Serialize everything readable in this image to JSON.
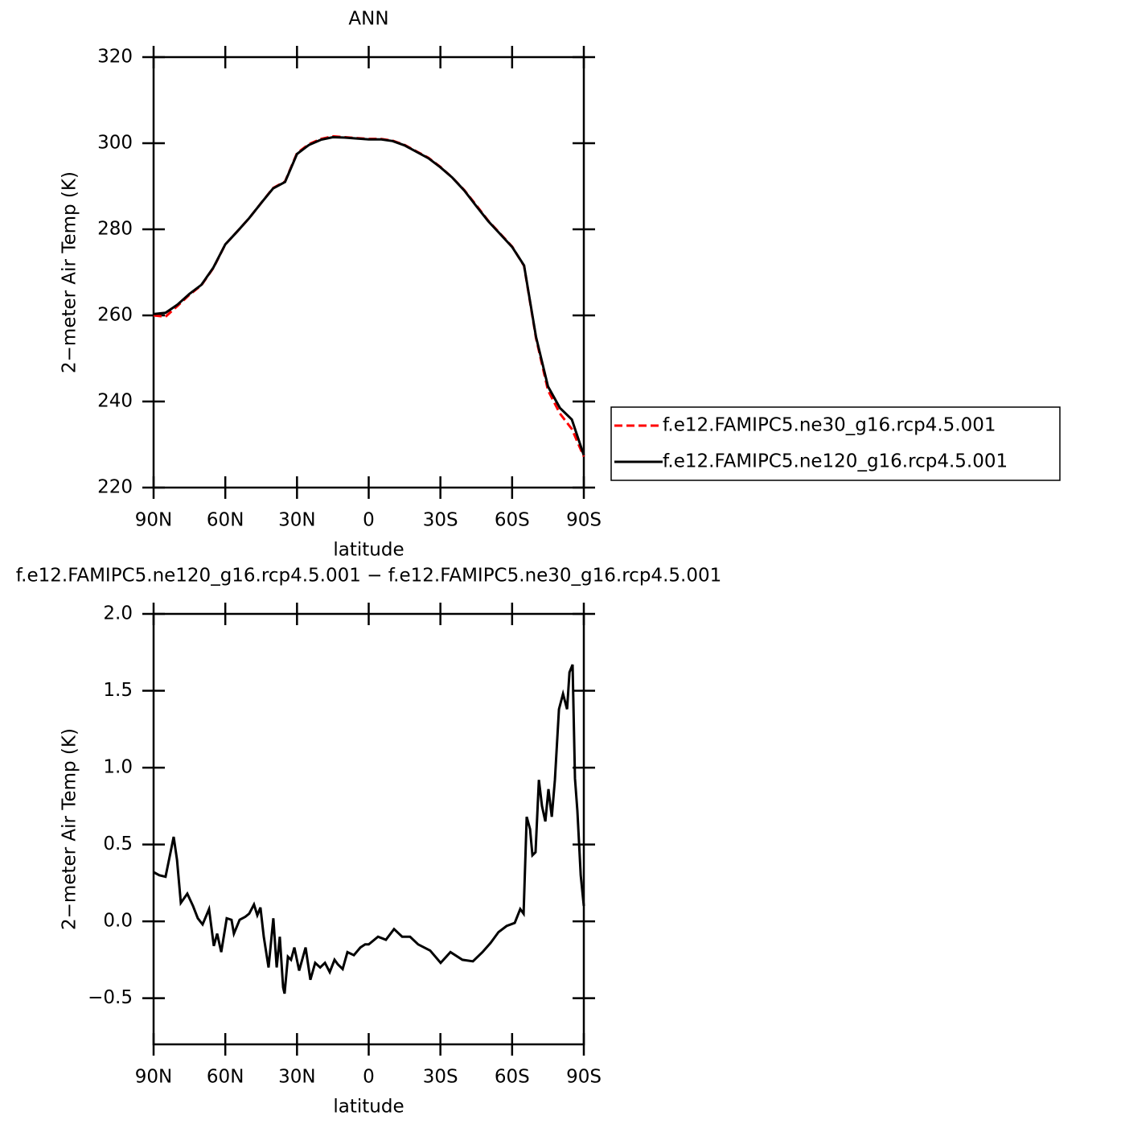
{
  "chart_data": [
    {
      "type": "line",
      "title": "ANN",
      "xlabel": "latitude",
      "ylabel": "2−meter Air Temp (K)",
      "xlim": [
        90,
        -90
      ],
      "xticks": [
        {
          "value": 90,
          "label": "90N"
        },
        {
          "value": 60,
          "label": "60N"
        },
        {
          "value": 30,
          "label": "30N"
        },
        0,
        {
          "value": -30,
          "label": "30S"
        },
        {
          "value": -60,
          "label": "60S"
        },
        {
          "value": -90,
          "label": "90S"
        }
      ],
      "ylim": [
        220,
        320
      ],
      "yticks": [
        220,
        240,
        260,
        280,
        300,
        320
      ],
      "legend": "outside-right",
      "x": [
        90,
        85,
        80,
        75,
        70,
        65,
        60,
        55,
        50,
        45,
        40,
        35,
        30,
        25,
        20,
        15,
        10,
        5,
        0,
        -5,
        -10,
        -15,
        -20,
        -25,
        -30,
        -35,
        -40,
        -45,
        -50,
        -55,
        -60,
        -65,
        -70,
        -75,
        -80,
        -85,
        -90
      ],
      "series": [
        {
          "name": "f.e12.FAMIPC5.ne30_g16.rcp4.5.001",
          "color": "#ff0000",
          "line_style": "dashed",
          "values": [
            260,
            259.7,
            262.2,
            264.8,
            267,
            271,
            276.5,
            279.5,
            282.6,
            286.1,
            289.6,
            291.1,
            297.7,
            299.8,
            301,
            301.6,
            301.4,
            301.2,
            301,
            301,
            300.6,
            299.6,
            298.1,
            296.6,
            294.5,
            292,
            289.1,
            285.6,
            282,
            279,
            276,
            271.5,
            254.7,
            242.6,
            237.2,
            233.6,
            227.2
          ]
        },
        {
          "name": "f.e12.FAMIPC5.ne120_g16.rcp4.5.001",
          "color": "#000000",
          "line_style": "solid",
          "values": [
            260.3,
            260.6,
            262.5,
            265,
            267.1,
            271.1,
            276.5,
            279.5,
            282.6,
            286.1,
            289.5,
            291,
            297.5,
            299.6,
            300.8,
            301.4,
            301.3,
            301.1,
            300.9,
            300.9,
            300.5,
            299.5,
            298,
            296.5,
            294.4,
            292,
            289,
            285.4,
            281.9,
            278.9,
            275.9,
            271.6,
            255,
            243.5,
            238.5,
            235.8,
            227.5
          ]
        }
      ]
    },
    {
      "type": "line",
      "title": "f.e12.FAMIPC5.ne120_g16.rcp4.5.001 − f.e12.FAMIPC5.ne30_g16.rcp4.5.001",
      "xlabel": "latitude",
      "ylabel": "2−meter Air Temp (K)",
      "xlim": [
        90,
        -90
      ],
      "xticks": [
        {
          "value": 90,
          "label": "90N"
        },
        {
          "value": 60,
          "label": "60N"
        },
        {
          "value": 30,
          "label": "30N"
        },
        0,
        {
          "value": -30,
          "label": "30S"
        },
        {
          "value": -60,
          "label": "60S"
        },
        {
          "value": -90,
          "label": "90S"
        }
      ],
      "ylim": [
        -0.8,
        2.0
      ],
      "yticks": [
        {
          "value": -0.5,
          "label": "−0.5"
        },
        {
          "value": 0,
          "label": "0.0"
        },
        0.5,
        {
          "value": 1,
          "label": "1.0"
        },
        1.5,
        {
          "value": 2,
          "label": "2.0"
        }
      ],
      "color": "#000000",
      "x": [
        90,
        87.6,
        85,
        82.9,
        81.6,
        80.2,
        78.6,
        75.9,
        73.5,
        71.5,
        69.5,
        66.8,
        64.8,
        63.4,
        61.7,
        59.4,
        57.4,
        56.4,
        54,
        51.6,
        50,
        48,
        46.6,
        45.3,
        43.9,
        41.9,
        39.9,
        38.5,
        37.2,
        35.8,
        35.2,
        33.8,
        32.5,
        31.1,
        29.1,
        26.4,
        24.4,
        22.4,
        20.3,
        18.3,
        16.3,
        14.3,
        12.9,
        10.9,
        8.9,
        6.2,
        3.5,
        1.5,
        0,
        -3.9,
        -7.2,
        -10.6,
        -14,
        -17.3,
        -20.7,
        -25.7,
        -30.1,
        -34.2,
        -39.2,
        -43.6,
        -47.6,
        -51,
        -54.3,
        -57.7,
        -61.1,
        -63.4,
        -64.8,
        -66.1,
        -67.5,
        -68.5,
        -69.8,
        -71.2,
        -72.5,
        -73.9,
        -75.2,
        -76.6,
        -77.9,
        -79.6,
        -81.3,
        -83,
        -84,
        -85.3,
        -86.3,
        -87.3,
        -88.7,
        -90
      ],
      "values": [
        0.32,
        0.3,
        0.29,
        0.45,
        0.55,
        0.4,
        0.12,
        0.18,
        0.1,
        0.02,
        -0.02,
        0.08,
        -0.16,
        -0.08,
        -0.2,
        0.02,
        0.01,
        -0.08,
        0.01,
        0.03,
        0.05,
        0.11,
        0.04,
        0.09,
        -0.1,
        -0.3,
        0.02,
        -0.3,
        -0.1,
        -0.43,
        -0.47,
        -0.23,
        -0.25,
        -0.17,
        -0.32,
        -0.17,
        -0.38,
        -0.27,
        -0.3,
        -0.27,
        -0.33,
        -0.25,
        -0.28,
        -0.31,
        -0.2,
        -0.22,
        -0.17,
        -0.15,
        -0.15,
        -0.1,
        -0.12,
        -0.05,
        -0.1,
        -0.1,
        -0.15,
        -0.19,
        -0.27,
        -0.2,
        -0.25,
        -0.26,
        -0.2,
        -0.14,
        -0.07,
        -0.03,
        -0.01,
        0.08,
        0.05,
        0.68,
        0.6,
        0.43,
        0.45,
        0.92,
        0.75,
        0.65,
        0.86,
        0.68,
        0.92,
        1.38,
        1.48,
        1.38,
        1.62,
        1.67,
        0.93,
        0.72,
        0.3,
        0.1
      ]
    }
  ]
}
